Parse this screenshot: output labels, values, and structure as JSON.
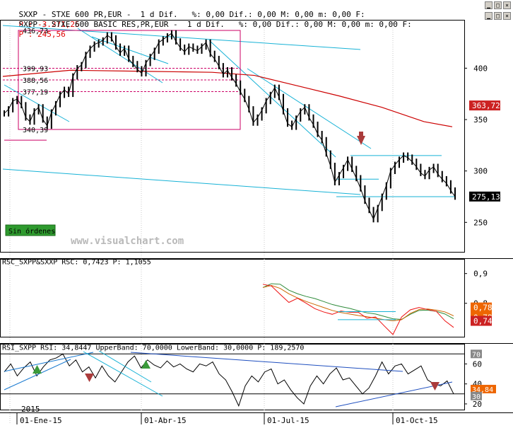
{
  "header": {
    "line1_left": "SXXP - STXE 600 PR,EUR -  1 d Dif.   %: 0,00 Dif.: 0,00 M: 0,00 m: 0,00 F:",
    "line1_value": "P : -3.271,25",
    "line2_left": "SXPP - STXE 600 BASIC RES,PR,EUR -  1 d Dif.   %: 0,00 Dif.: 0,00 M: 0,00 m: 0,00 F:",
    "line2_value": "P : 245,56"
  },
  "watermark": "www.visualchart.com",
  "order_button": "Sin órdenes",
  "colors": {
    "price": "#000000",
    "ma": "#cc0000",
    "channel": "#17b2d6",
    "box": "#cc0066",
    "rsc_green": "#2e8b3a",
    "rsc_orange": "#cc6600",
    "rsc_red": "#ee1111",
    "rsi_trend": "#1f4fbf",
    "arrow_down": "#aa3b3b",
    "arrow_up": "#3a9a3a",
    "tag_red": "#cc2222",
    "tag_orange": "#ee6600"
  },
  "chart_data": [
    {
      "type": "line",
      "series": [
        {
          "values": [
            356,
            360,
            368,
            370,
            364,
            352,
            348,
            358,
            362,
            350,
            344,
            357,
            365,
            374,
            379,
            375,
            392,
            400,
            403,
            413,
            419,
            423,
            425,
            427,
            432,
            429,
            421,
            415,
            419,
            409,
            404,
            399,
            395,
            405,
            411,
            417,
            425,
            428,
            431,
            434,
            426,
            420,
            416,
            421,
            419,
            417,
            421,
            425,
            414,
            409,
            402,
            394,
            398,
            391,
            385,
            377,
            370,
            360,
            347,
            352,
            359,
            368,
            374,
            381,
            372,
            358,
            346,
            343,
            351,
            358,
            362,
            352,
            345,
            336,
            330,
            317,
            305,
            289,
            296,
            303,
            311,
            302,
            293,
            283,
            271,
            262,
            253,
            264,
            275,
            286,
            300,
            306,
            311,
            315,
            313,
            309,
            304,
            298,
            295,
            301,
            304,
            297,
            292,
            288,
            281,
            275
          ]
        }
      ],
      "yaxis_ticks": [
        400,
        350,
        300,
        250
      ],
      "levels": [
        "436,73",
        "399,93",
        "388,56",
        "377,19",
        "340,39"
      ],
      "tags": [
        "363,72",
        "275,13"
      ],
      "ylim": [
        222,
        445
      ]
    },
    {
      "type": "line",
      "title": "RSC_SXPP&SXXP RSC: 0,7423 P: 1,1055",
      "series": [
        {
          "values": [
            0.853,
            0.866,
            0.864,
            0.844,
            0.832,
            0.823,
            0.816,
            0.806,
            0.796,
            0.789,
            0.783,
            0.775,
            0.768,
            0.764,
            0.756,
            0.748,
            0.746,
            0.763,
            0.776,
            0.777,
            0.773,
            0.764,
            0.748
          ]
        },
        {
          "values": [
            0.853,
            0.86,
            0.85,
            0.832,
            0.818,
            0.806,
            0.796,
            0.786,
            0.776,
            0.769,
            0.764,
            0.759,
            0.755,
            0.75,
            0.745,
            0.741,
            0.745,
            0.766,
            0.779,
            0.781,
            0.777,
            0.771,
            0.758
          ]
        },
        {
          "values": [
            0.864,
            0.858,
            0.83,
            0.803,
            0.817,
            0.8,
            0.782,
            0.771,
            0.763,
            0.774,
            0.77,
            0.77,
            0.75,
            0.754,
            0.724,
            0.695,
            0.754,
            0.778,
            0.786,
            0.779,
            0.773,
            0.741,
            0.719
          ]
        }
      ],
      "yaxis_ticks": [
        0.9,
        0.8
      ],
      "tags": [
        "0,78",
        "0,78",
        "0,74"
      ],
      "ylim": [
        0.69,
        0.942
      ]
    },
    {
      "type": "line",
      "title": "RSI_SXPP RSI: 34,8447 UpperBand: 70,0000 LowerBand: 30,0000 P: 189,2570",
      "series": [
        {
          "values": [
            52,
            60,
            48,
            56,
            62,
            48,
            57,
            64,
            66,
            70,
            58,
            64,
            52,
            57,
            46,
            58,
            48,
            42,
            52,
            62,
            68,
            56,
            64,
            59,
            56,
            63,
            57,
            60,
            55,
            52,
            60,
            58,
            62,
            50,
            44,
            32,
            18,
            38,
            48,
            42,
            52,
            55,
            40,
            44,
            34,
            26,
            20,
            38,
            48,
            40,
            50,
            56,
            44,
            46,
            38,
            30,
            36,
            48,
            62,
            50,
            58,
            60,
            50,
            54,
            58,
            44,
            40,
            38,
            43,
            30
          ]
        }
      ],
      "bands": [
        70,
        30
      ],
      "yaxis_ticks": [
        60,
        40,
        20
      ],
      "tags": [
        "70",
        "34,84",
        "30"
      ],
      "ylim": [
        15,
        78
      ]
    }
  ],
  "xaxis": {
    "year": "2015",
    "labels": [
      "01-Ene-15",
      "01-Abr-15",
      "01-Jul-15",
      "01-Oct-15"
    ]
  }
}
